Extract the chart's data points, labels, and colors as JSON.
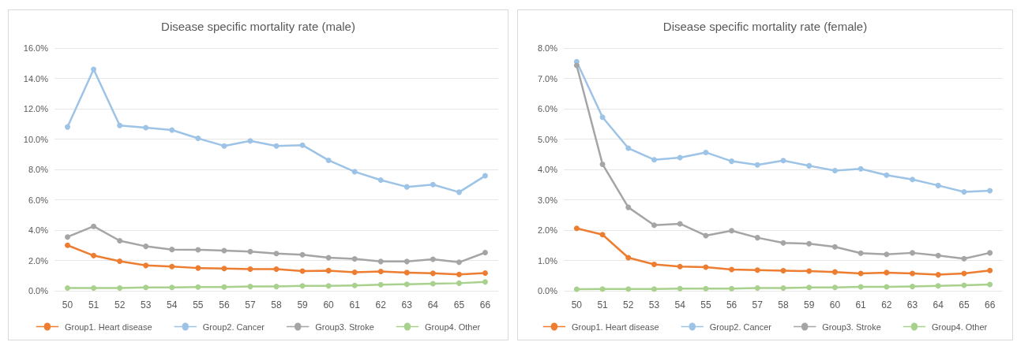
{
  "chart_data": [
    {
      "type": "line",
      "title": "Disease specific mortality rate (male)",
      "categories": [
        "50",
        "51",
        "52",
        "53",
        "54",
        "55",
        "56",
        "57",
        "58",
        "59",
        "60",
        "61",
        "62",
        "63",
        "64",
        "65",
        "66"
      ],
      "series": [
        {
          "name": "Group1. Heart disease",
          "color": "#ed7d31",
          "values": [
            3.0,
            2.32,
            1.95,
            1.67,
            1.6,
            1.5,
            1.47,
            1.43,
            1.43,
            1.3,
            1.33,
            1.22,
            1.27,
            1.2,
            1.15,
            1.08,
            1.17
          ]
        },
        {
          "name": "Group2. Cancer",
          "color": "#9dc3e6",
          "values": [
            10.8,
            14.6,
            10.9,
            10.75,
            10.6,
            10.05,
            9.55,
            9.88,
            9.55,
            9.6,
            8.6,
            7.85,
            7.3,
            6.85,
            7.0,
            6.5,
            7.58
          ]
        },
        {
          "name": "Group3. Stroke",
          "color": "#a5a5a5",
          "values": [
            3.55,
            4.25,
            3.3,
            2.93,
            2.72,
            2.7,
            2.65,
            2.58,
            2.45,
            2.38,
            2.18,
            2.1,
            1.93,
            1.93,
            2.08,
            1.88,
            2.52
          ]
        },
        {
          "name": "Group4. Other",
          "color": "#a9d18e",
          "values": [
            0.18,
            0.18,
            0.18,
            0.22,
            0.22,
            0.25,
            0.25,
            0.28,
            0.28,
            0.32,
            0.32,
            0.35,
            0.4,
            0.43,
            0.47,
            0.5,
            0.58
          ]
        }
      ],
      "ylim": [
        0,
        16
      ],
      "yticks": [
        {
          "value": 0,
          "label": "0.0%"
        },
        {
          "value": 2,
          "label": "2.0%"
        },
        {
          "value": 4,
          "label": "4.0%"
        },
        {
          "value": 6,
          "label": "6.0%"
        },
        {
          "value": 8,
          "label": "8.0%"
        },
        {
          "value": 10,
          "label": "10.0%"
        },
        {
          "value": 12,
          "label": "12.0%"
        },
        {
          "value": 14,
          "label": "14.0%"
        },
        {
          "value": 16,
          "label": "16.0%"
        }
      ],
      "grid": "y",
      "legend": "bottom",
      "marker": "circle",
      "line_style": "solid"
    },
    {
      "type": "line",
      "title": "Disease specific mortality rate (female)",
      "categories": [
        "50",
        "51",
        "52",
        "53",
        "54",
        "55",
        "56",
        "57",
        "58",
        "59",
        "60",
        "61",
        "62",
        "63",
        "64",
        "65",
        "66"
      ],
      "series": [
        {
          "name": "Group1. Heart disease",
          "color": "#ed7d31",
          "values": [
            2.06,
            1.85,
            1.09,
            0.87,
            0.8,
            0.78,
            0.7,
            0.68,
            0.66,
            0.65,
            0.62,
            0.57,
            0.6,
            0.57,
            0.53,
            0.57,
            0.67
          ]
        },
        {
          "name": "Group2. Cancer",
          "color": "#9dc3e6",
          "values": [
            7.55,
            5.72,
            4.7,
            4.32,
            4.39,
            4.56,
            4.27,
            4.15,
            4.29,
            4.12,
            3.96,
            4.02,
            3.81,
            3.67,
            3.47,
            3.26,
            3.3
          ]
        },
        {
          "name": "Group3. Stroke",
          "color": "#a5a5a5",
          "values": [
            7.43,
            4.17,
            2.75,
            2.16,
            2.21,
            1.82,
            1.98,
            1.75,
            1.58,
            1.55,
            1.45,
            1.24,
            1.2,
            1.25,
            1.16,
            1.06,
            1.25
          ]
        },
        {
          "name": "Group4. Other",
          "color": "#a9d18e",
          "values": [
            0.05,
            0.06,
            0.06,
            0.06,
            0.07,
            0.07,
            0.07,
            0.09,
            0.09,
            0.11,
            0.11,
            0.13,
            0.13,
            0.14,
            0.16,
            0.18,
            0.21
          ]
        }
      ],
      "ylim": [
        0,
        8
      ],
      "yticks": [
        {
          "value": 0,
          "label": "0.0%"
        },
        {
          "value": 1,
          "label": "1.0%"
        },
        {
          "value": 2,
          "label": "2.0%"
        },
        {
          "value": 3,
          "label": "3.0%"
        },
        {
          "value": 4,
          "label": "4.0%"
        },
        {
          "value": 5,
          "label": "5.0%"
        },
        {
          "value": 6,
          "label": "6.0%"
        },
        {
          "value": 7,
          "label": "7.0%"
        },
        {
          "value": 8,
          "label": "8.0%"
        }
      ],
      "grid": "y",
      "legend": "bottom",
      "marker": "circle",
      "line_style": "solid"
    }
  ]
}
